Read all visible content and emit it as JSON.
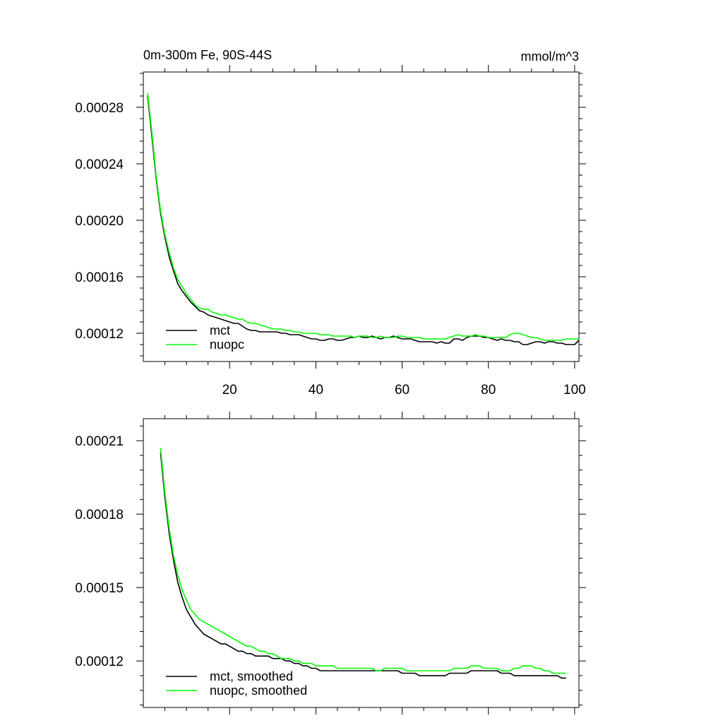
{
  "figure": {
    "title_left": "0m-300m Fe, 90S-44S",
    "title_right": "mmol/m^3"
  },
  "chart_data": [
    {
      "type": "line",
      "title": "0m-300m Fe, 90S-44S",
      "units": "mmol/m^3",
      "xlim": [
        0,
        101
      ],
      "ylim": [
        0.0001,
        0.000305
      ],
      "xticks": [
        20,
        40,
        60,
        80,
        100
      ],
      "xtick_labels": [
        "20",
        "40",
        "60",
        "80",
        "100"
      ],
      "yticks": [
        0.00012,
        0.00016,
        0.0002,
        0.00024,
        0.00028
      ],
      "ytick_labels": [
        "0.00012",
        "0.00016",
        "0.00020",
        "0.00024",
        "0.00028"
      ],
      "grid": false,
      "legend_position": "bottom-left",
      "series": [
        {
          "name": "mct",
          "color": "#000000",
          "x": [
            1,
            2,
            3,
            4,
            5,
            6,
            7,
            8,
            9,
            10,
            11,
            12,
            13,
            14,
            15,
            16,
            17,
            18,
            19,
            20,
            21,
            22,
            23,
            24,
            25,
            26,
            27,
            28,
            29,
            30,
            31,
            32,
            33,
            34,
            35,
            36,
            37,
            38,
            39,
            40,
            41,
            42,
            43,
            44,
            45,
            46,
            47,
            48,
            49,
            50,
            51,
            52,
            53,
            54,
            55,
            56,
            57,
            58,
            59,
            60,
            61,
            62,
            63,
            64,
            65,
            66,
            67,
            68,
            69,
            70,
            71,
            72,
            73,
            74,
            75,
            76,
            77,
            78,
            79,
            80,
            81,
            82,
            83,
            84,
            85,
            86,
            87,
            88,
            89,
            90,
            91,
            92,
            93,
            94,
            95,
            96,
            97,
            98,
            99,
            100,
            101
          ],
          "y": [
            0.000288,
            0.000259,
            0.000229,
            0.000205,
            0.000188,
            0.000174,
            0.000164,
            0.000155,
            0.00015,
            0.000146,
            0.000142,
            0.000139,
            0.000136,
            0.000135,
            0.000133,
            0.000132,
            0.000131,
            0.00013,
            0.000129,
            0.000128,
            0.000127,
            0.000127,
            0.000125,
            0.000123,
            0.000122,
            0.000122,
            0.000121,
            0.000121,
            0.000121,
            0.000121,
            0.000121,
            0.00012,
            0.00012,
            0.000119,
            0.000119,
            0.000119,
            0.000118,
            0.000117,
            0.000116,
            0.000116,
            0.000115,
            0.000115,
            0.000116,
            0.000116,
            0.000115,
            0.000115,
            0.000116,
            0.000117,
            0.000117,
            0.000118,
            0.000117,
            0.000117,
            0.000118,
            0.000117,
            0.000116,
            0.000117,
            0.000117,
            0.000118,
            0.000117,
            0.000116,
            0.000116,
            0.000116,
            0.000115,
            0.000114,
            0.000114,
            0.000114,
            0.000114,
            0.000113,
            0.000114,
            0.000113,
            0.000113,
            0.000116,
            0.000116,
            0.000115,
            0.000117,
            0.000118,
            0.000118,
            0.000118,
            0.000117,
            0.000117,
            0.000116,
            0.000115,
            0.000116,
            0.000115,
            0.000115,
            0.000114,
            0.000114,
            0.000112,
            0.000112,
            0.000113,
            0.000114,
            0.000114,
            0.000113,
            0.000114,
            0.000114,
            0.000113,
            0.000113,
            0.000112,
            0.000112,
            0.000112,
            0.000115
          ]
        },
        {
          "name": "nuopc",
          "color": "#00ff00",
          "x": [
            1,
            2,
            3,
            4,
            5,
            6,
            7,
            8,
            9,
            10,
            11,
            12,
            13,
            14,
            15,
            16,
            17,
            18,
            19,
            20,
            21,
            22,
            23,
            24,
            25,
            26,
            27,
            28,
            29,
            30,
            31,
            32,
            33,
            34,
            35,
            36,
            37,
            38,
            39,
            40,
            41,
            42,
            43,
            44,
            45,
            46,
            47,
            48,
            49,
            50,
            51,
            52,
            53,
            54,
            55,
            56,
            57,
            58,
            59,
            60,
            61,
            62,
            63,
            64,
            65,
            66,
            67,
            68,
            69,
            70,
            71,
            72,
            73,
            74,
            75,
            76,
            77,
            78,
            79,
            80,
            81,
            82,
            83,
            84,
            85,
            86,
            87,
            88,
            89,
            90,
            91,
            92,
            93,
            94,
            95,
            96,
            97,
            98,
            99,
            100,
            101
          ],
          "y": [
            0.00029,
            0.000262,
            0.000231,
            0.000207,
            0.00019,
            0.000177,
            0.000166,
            0.000158,
            0.000153,
            0.000148,
            0.000144,
            0.00014,
            0.000138,
            0.000137,
            0.000137,
            0.000135,
            0.000134,
            0.000133,
            0.000133,
            0.000132,
            0.000131,
            0.00013,
            0.00013,
            0.000128,
            0.000127,
            0.000127,
            0.000126,
            0.000125,
            0.000124,
            0.000123,
            0.000123,
            0.000123,
            0.000122,
            0.000122,
            0.000121,
            0.000121,
            0.00012,
            0.00012,
            0.00012,
            0.00012,
            0.000119,
            0.000119,
            0.000119,
            0.000118,
            0.000118,
            0.000118,
            0.000118,
            0.000118,
            0.000117,
            0.000118,
            0.000118,
            0.000118,
            0.000117,
            0.000117,
            0.000118,
            0.000117,
            0.000117,
            0.000117,
            0.000118,
            0.000118,
            0.000117,
            0.000117,
            0.000117,
            0.000117,
            0.000116,
            0.000116,
            0.000116,
            0.000116,
            0.000116,
            0.000116,
            0.000117,
            0.000118,
            0.000119,
            0.000118,
            0.000118,
            0.000118,
            0.000119,
            0.000118,
            0.000118,
            0.000117,
            0.000117,
            0.000117,
            0.000117,
            0.000117,
            0.000119,
            0.00012,
            0.00012,
            0.000119,
            0.000118,
            0.000117,
            0.000117,
            0.000116,
            0.000115,
            0.000115,
            0.000115,
            0.000115,
            0.000115,
            0.000116,
            0.000116,
            0.000116,
            0.000116
          ]
        }
      ]
    },
    {
      "type": "line",
      "xlim": [
        0,
        101
      ],
      "ylim": [
        0.000101,
        0.000219
      ],
      "xticks": [
        20,
        40,
        60,
        80,
        100
      ],
      "xtick_labels": [],
      "yticks": [
        0.00012,
        0.00015,
        0.00018,
        0.00021
      ],
      "ytick_labels": [
        "0.00012",
        "0.00015",
        "0.00018",
        "0.00021"
      ],
      "grid": false,
      "legend_position": "bottom-left",
      "series": [
        {
          "name": "mct, smoothed",
          "color": "#000000",
          "x": [
            4,
            5,
            6,
            7,
            8,
            9,
            10,
            11,
            12,
            13,
            14,
            15,
            16,
            17,
            18,
            19,
            20,
            21,
            22,
            23,
            24,
            25,
            26,
            27,
            28,
            29,
            30,
            31,
            32,
            33,
            34,
            35,
            36,
            37,
            38,
            39,
            40,
            41,
            42,
            43,
            44,
            45,
            46,
            47,
            48,
            49,
            50,
            51,
            52,
            53,
            54,
            55,
            56,
            57,
            58,
            59,
            60,
            61,
            62,
            63,
            64,
            65,
            66,
            67,
            68,
            69,
            70,
            71,
            72,
            73,
            74,
            75,
            76,
            77,
            78,
            79,
            80,
            81,
            82,
            83,
            84,
            85,
            86,
            87,
            88,
            89,
            90,
            91,
            92,
            93,
            94,
            95,
            96,
            97,
            98
          ],
          "y": [
            0.000205,
            0.000187,
            0.000172,
            0.000161,
            0.000152,
            0.000146,
            0.000141,
            0.000138,
            0.000135,
            0.000133,
            0.000131,
            0.00013,
            0.000129,
            0.000128,
            0.000127,
            0.000127,
            0.000126,
            0.000125,
            0.000124,
            0.000124,
            0.000123,
            0.000123,
            0.000122,
            0.000122,
            0.000122,
            0.000122,
            0.000121,
            0.000121,
            0.000121,
            0.00012,
            0.00012,
            0.000119,
            0.000119,
            0.000118,
            0.000118,
            0.000117,
            0.000117,
            0.000116,
            0.000116,
            0.000116,
            0.000116,
            0.000116,
            0.000116,
            0.000116,
            0.000116,
            0.000116,
            0.000116,
            0.000116,
            0.000116,
            0.000116,
            0.000116,
            0.000116,
            0.000116,
            0.000116,
            0.000116,
            0.000116,
            0.000115,
            0.000115,
            0.000115,
            0.000115,
            0.000114,
            0.000114,
            0.000114,
            0.000114,
            0.000114,
            0.000114,
            0.000114,
            0.000115,
            0.000115,
            0.000115,
            0.000115,
            0.000115,
            0.000116,
            0.000116,
            0.000116,
            0.000116,
            0.000116,
            0.000116,
            0.000116,
            0.000115,
            0.000115,
            0.000115,
            0.000114,
            0.000114,
            0.000114,
            0.000114,
            0.000114,
            0.000114,
            0.000114,
            0.000114,
            0.000114,
            0.000114,
            0.000114,
            0.000113,
            0.000113
          ]
        },
        {
          "name": "nuopc, smoothed",
          "color": "#00ff00",
          "x": [
            4,
            5,
            6,
            7,
            8,
            9,
            10,
            11,
            12,
            13,
            14,
            15,
            16,
            17,
            18,
            19,
            20,
            21,
            22,
            23,
            24,
            25,
            26,
            27,
            28,
            29,
            30,
            31,
            32,
            33,
            34,
            35,
            36,
            37,
            38,
            39,
            40,
            41,
            42,
            43,
            44,
            45,
            46,
            47,
            48,
            49,
            50,
            51,
            52,
            53,
            54,
            55,
            56,
            57,
            58,
            59,
            60,
            61,
            62,
            63,
            64,
            65,
            66,
            67,
            68,
            69,
            70,
            71,
            72,
            73,
            74,
            75,
            76,
            77,
            78,
            79,
            80,
            81,
            82,
            83,
            84,
            85,
            86,
            87,
            88,
            89,
            90,
            91,
            92,
            93,
            94,
            95,
            96,
            97,
            98
          ],
          "y": [
            0.000207,
            0.000189,
            0.000174,
            0.000163,
            0.000155,
            0.000149,
            0.000145,
            0.000141,
            0.000139,
            0.000137,
            0.000136,
            0.000135,
            0.000134,
            0.000133,
            0.000132,
            0.000131,
            0.00013,
            0.000129,
            0.000128,
            0.000127,
            0.000126,
            0.000126,
            0.000125,
            0.000124,
            0.000124,
            0.000123,
            0.000123,
            0.000122,
            0.000121,
            0.000121,
            0.000121,
            0.00012,
            0.00012,
            0.000119,
            0.000119,
            0.000119,
            0.000118,
            0.000118,
            0.000118,
            0.000118,
            0.000118,
            0.000117,
            0.000117,
            0.000117,
            0.000117,
            0.000117,
            0.000117,
            0.000117,
            0.000117,
            0.000117,
            0.000116,
            0.000116,
            0.000117,
            0.000117,
            0.000117,
            0.000117,
            0.000117,
            0.000116,
            0.000116,
            0.000116,
            0.000116,
            0.000116,
            0.000116,
            0.000116,
            0.000116,
            0.000116,
            0.000116,
            0.000116,
            0.000117,
            0.000117,
            0.000117,
            0.000117,
            0.000118,
            0.000118,
            0.000118,
            0.000117,
            0.000117,
            0.000117,
            0.000117,
            0.000116,
            0.000116,
            0.000116,
            0.000117,
            0.000117,
            0.000118,
            0.000118,
            0.000118,
            0.000117,
            0.000117,
            0.000116,
            0.000116,
            0.000115,
            0.000115,
            0.000115,
            0.000115
          ]
        }
      ]
    }
  ]
}
